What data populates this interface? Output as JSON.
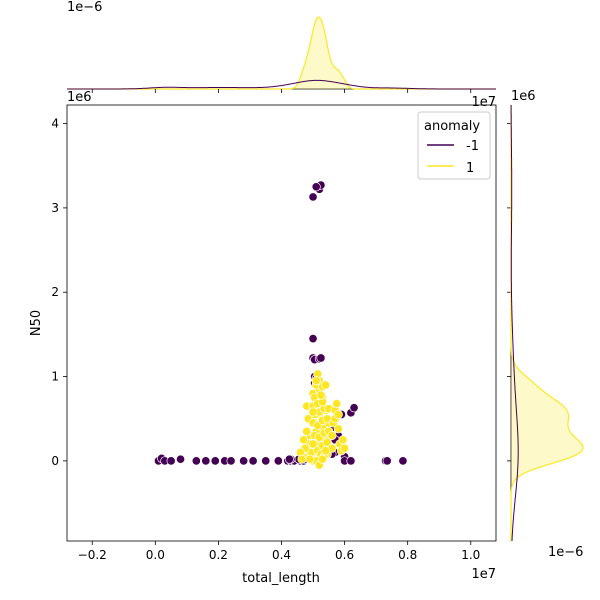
{
  "chart_data": {
    "type": "scatter",
    "title": "",
    "xlabel": "total_length",
    "ylabel": "N50",
    "x_offset_label": "1e7",
    "y_offset_label": "1e6",
    "xlim": [
      -0.28,
      1.08
    ],
    "ylim": [
      -0.95,
      4.22
    ],
    "x_ticks": [
      -0.2,
      0.0,
      0.2,
      0.4,
      0.6,
      0.8,
      1.0
    ],
    "x_tick_labels": [
      "−0.2",
      "0.0",
      "0.2",
      "0.4",
      "0.6",
      "0.8",
      "1.0"
    ],
    "y_ticks": [
      0,
      1,
      2,
      3,
      4
    ],
    "y_tick_labels": [
      "0",
      "1",
      "2",
      "3",
      "4"
    ],
    "grid": false,
    "legend": {
      "title": "anomaly",
      "position": "top-right",
      "entries": [
        {
          "label": "-1",
          "color": "#440154"
        },
        {
          "label": "1",
          "color": "#fde725"
        }
      ]
    },
    "series": [
      {
        "name": "-1",
        "color": "#440154",
        "points": [
          [
            0.01,
            0.0
          ],
          [
            0.02,
            0.03
          ],
          [
            0.03,
            0.0
          ],
          [
            0.05,
            0.0
          ],
          [
            0.08,
            0.02
          ],
          [
            0.13,
            0.0
          ],
          [
            0.16,
            0.0
          ],
          [
            0.19,
            0.0
          ],
          [
            0.22,
            0.0
          ],
          [
            0.24,
            0.0
          ],
          [
            0.28,
            0.0
          ],
          [
            0.31,
            0.0
          ],
          [
            0.35,
            0.0
          ],
          [
            0.39,
            0.0
          ],
          [
            0.42,
            0.0
          ],
          [
            0.43,
            0.0
          ],
          [
            0.44,
            0.0
          ],
          [
            0.46,
            0.0
          ],
          [
            0.47,
            0.0
          ],
          [
            0.455,
            0.02
          ],
          [
            0.475,
            0.02
          ],
          [
            0.47,
            0.08
          ],
          [
            0.43,
            0.02
          ],
          [
            0.425,
            0.02
          ],
          [
            0.5,
            3.13
          ],
          [
            0.52,
            3.22
          ],
          [
            0.525,
            3.27
          ],
          [
            0.51,
            3.25
          ],
          [
            0.5,
            1.45
          ],
          [
            0.5,
            1.22
          ],
          [
            0.505,
            1.2
          ],
          [
            0.52,
            1.21
          ],
          [
            0.525,
            1.22
          ],
          [
            0.505,
            1.0
          ],
          [
            0.51,
            0.98
          ],
          [
            0.52,
            0.95
          ],
          [
            0.505,
            0.92
          ],
          [
            0.51,
            0.9
          ],
          [
            0.53,
            0.75
          ],
          [
            0.59,
            0.55
          ],
          [
            0.62,
            0.57
          ],
          [
            0.63,
            0.63
          ],
          [
            0.565,
            0.4
          ],
          [
            0.58,
            0.3
          ],
          [
            0.57,
            0.25
          ],
          [
            0.6,
            0.05
          ],
          [
            0.6,
            0.0
          ],
          [
            0.57,
            0.1
          ],
          [
            0.56,
            0.08
          ],
          [
            0.54,
            0.1
          ],
          [
            0.73,
            0.0
          ],
          [
            0.735,
            0.0
          ],
          [
            0.785,
            0.0
          ],
          [
            0.62,
            0.0
          ]
        ]
      },
      {
        "name": "1",
        "color": "#fde725",
        "points": [
          [
            0.51,
            0.02
          ],
          [
            0.52,
            0.05
          ],
          [
            0.53,
            0.1
          ],
          [
            0.5,
            0.15
          ],
          [
            0.52,
            0.2
          ],
          [
            0.54,
            0.25
          ],
          [
            0.49,
            0.3
          ],
          [
            0.51,
            0.35
          ],
          [
            0.53,
            0.4
          ],
          [
            0.55,
            0.45
          ],
          [
            0.5,
            0.5
          ],
          [
            0.52,
            0.55
          ],
          [
            0.54,
            0.6
          ],
          [
            0.49,
            0.65
          ],
          [
            0.51,
            0.7
          ],
          [
            0.53,
            0.75
          ],
          [
            0.5,
            0.8
          ],
          [
            0.52,
            0.85
          ],
          [
            0.51,
            0.9
          ],
          [
            0.52,
            0.95
          ],
          [
            0.53,
            0.88
          ],
          [
            0.515,
            1.03
          ],
          [
            0.48,
            0.1
          ],
          [
            0.485,
            0.2
          ],
          [
            0.48,
            0.35
          ],
          [
            0.485,
            0.5
          ],
          [
            0.48,
            0.65
          ],
          [
            0.495,
            0.1
          ],
          [
            0.5,
            0.2
          ],
          [
            0.505,
            0.3
          ],
          [
            0.5,
            0.45
          ],
          [
            0.505,
            0.55
          ],
          [
            0.5,
            0.65
          ],
          [
            0.505,
            0.75
          ],
          [
            0.515,
            0.12
          ],
          [
            0.52,
            0.28
          ],
          [
            0.515,
            0.42
          ],
          [
            0.52,
            0.58
          ],
          [
            0.515,
            0.68
          ],
          [
            0.53,
            0.18
          ],
          [
            0.535,
            0.33
          ],
          [
            0.53,
            0.48
          ],
          [
            0.535,
            0.62
          ],
          [
            0.53,
            0.7
          ],
          [
            0.545,
            0.08
          ],
          [
            0.545,
            0.22
          ],
          [
            0.55,
            0.35
          ],
          [
            0.545,
            0.5
          ],
          [
            0.55,
            0.62
          ],
          [
            0.56,
            0.15
          ],
          [
            0.56,
            0.3
          ],
          [
            0.565,
            0.45
          ],
          [
            0.57,
            0.6
          ],
          [
            0.575,
            0.68
          ],
          [
            0.47,
            0.05
          ],
          [
            0.475,
            0.15
          ],
          [
            0.47,
            0.25
          ],
          [
            0.46,
            0.1
          ],
          [
            0.465,
            0.02
          ],
          [
            0.585,
            0.2
          ],
          [
            0.59,
            0.12
          ],
          [
            0.58,
            0.38
          ],
          [
            0.595,
            0.25
          ],
          [
            0.57,
            0.5
          ],
          [
            0.58,
            0.55
          ],
          [
            0.6,
            0.15
          ],
          [
            0.525,
            0.08
          ],
          [
            0.535,
            0.05
          ],
          [
            0.54,
            0.12
          ],
          [
            0.5,
            0.0
          ],
          [
            0.51,
            0.0
          ],
          [
            0.52,
            -0.05
          ],
          [
            0.53,
            0.02
          ],
          [
            0.49,
            0.02
          ],
          [
            0.5,
            0.58
          ],
          [
            0.525,
            0.78
          ],
          [
            0.51,
            0.95
          ],
          [
            0.54,
            0.9
          ]
        ]
      }
    ],
    "top_marginal": {
      "type": "kde",
      "offset_label": "1e−6",
      "series": [
        {
          "name": "-1",
          "color": "#440154",
          "peak_x": 0.52,
          "peak_density": 0.12
        },
        {
          "name": "1",
          "color": "#fde725",
          "peak_x": 0.52,
          "peak_density": 1.0
        }
      ]
    },
    "right_marginal": {
      "type": "kde",
      "offset_label": "1e−6",
      "series": [
        {
          "name": "-1",
          "color": "#440154",
          "peak_y": 0.0,
          "peak_density": 0.1
        },
        {
          "name": "1",
          "color": "#fde725",
          "peak_y": 0.2,
          "peak_density": 1.0
        }
      ]
    }
  }
}
